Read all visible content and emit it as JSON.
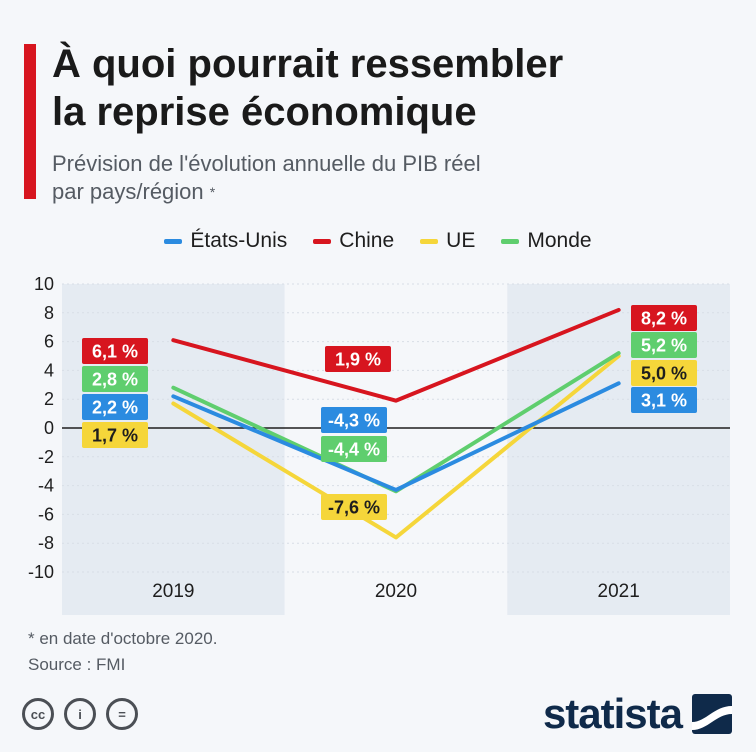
{
  "header": {
    "title_line1": "À quoi pourrait ressembler",
    "title_line2": "la reprise économique",
    "subtitle_line1": "Prévision de l'évolution annuelle du PIB réel",
    "subtitle_line2": "par pays/région",
    "subtitle_mark": "*"
  },
  "legend": [
    {
      "label": "États-Unis",
      "color": "#2b8be0"
    },
    {
      "label": "Chine",
      "color": "#d7151f"
    },
    {
      "label": "UE",
      "color": "#f5d63a"
    },
    {
      "label": "Monde",
      "color": "#5fce6e"
    }
  ],
  "chart_data": {
    "type": "line",
    "categories": [
      "2019",
      "2020",
      "2021"
    ],
    "ylim": [
      -10,
      10
    ],
    "yticks": [
      "10",
      "8",
      "6",
      "4",
      "2",
      "0",
      "-2",
      "-4",
      "-6",
      "-8",
      "-10"
    ],
    "series": [
      {
        "name": "États-Unis",
        "color": "#2b8be0",
        "text_color": "#ffffff",
        "values": [
          2.2,
          -4.3,
          3.1
        ],
        "labels": [
          "2,2 %",
          "-4,3 %",
          "3,1 %"
        ]
      },
      {
        "name": "Chine",
        "color": "#d7151f",
        "text_color": "#ffffff",
        "values": [
          6.1,
          1.9,
          8.2
        ],
        "labels": [
          "6,1 %",
          "1,9 %",
          "8,2 %"
        ]
      },
      {
        "name": "UE",
        "color": "#f5d63a",
        "text_color": "#1e1e1e",
        "values": [
          1.7,
          -7.6,
          5.0
        ],
        "labels": [
          "1,7 %",
          "-7,6 %",
          "5,0 %"
        ]
      },
      {
        "name": "Monde",
        "color": "#5fce6e",
        "text_color": "#ffffff",
        "values": [
          2.8,
          -4.4,
          5.2
        ],
        "labels": [
          "2,8 %",
          "-4,4 %",
          "5,2 %"
        ]
      }
    ],
    "grid": true
  },
  "footer": {
    "note": "* en date d'octobre 2020.",
    "source": "Source : FMI"
  },
  "license_icons": [
    "cc-icon",
    "by-icon",
    "nd-icon"
  ],
  "license_glyphs": [
    "cc",
    "i",
    "="
  ],
  "brand": {
    "name": "statista",
    "color": "#0f2a4a"
  }
}
